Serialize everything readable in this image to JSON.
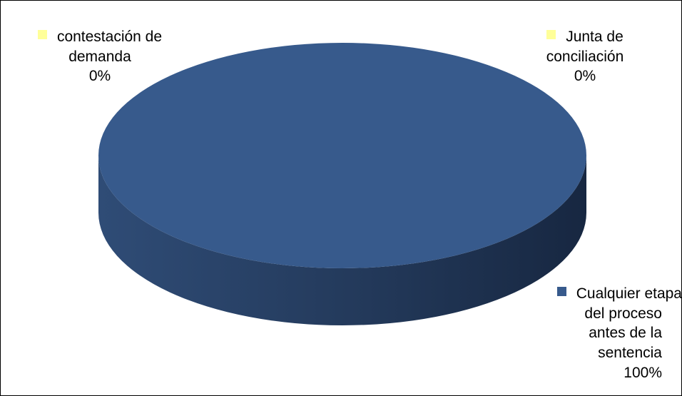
{
  "chart_data": {
    "type": "pie",
    "style": "3d",
    "title": "",
    "categories": [
      "contestación de demanda",
      "Junta de conciliación",
      "Cualquier etapa del proceso antes de la sentencia"
    ],
    "values": [
      0,
      0,
      100
    ],
    "units": "%",
    "colors": [
      "#FFFF99",
      "#FFFF99",
      "#375A8C"
    ],
    "slices": [
      {
        "label_lines": [
          "contestación de",
          "demanda"
        ],
        "value_text": "0%",
        "color": "#FFFF99"
      },
      {
        "label_lines": [
          "Junta de",
          "conciliación"
        ],
        "value_text": "0%",
        "color": "#FFFF99"
      },
      {
        "label_lines": [
          "Cualquier etapa",
          "del proceso",
          "antes de la",
          "sentencia"
        ],
        "value_text": "100%",
        "color": "#375A8C"
      }
    ],
    "legend": "none",
    "data_labels": "outside"
  }
}
